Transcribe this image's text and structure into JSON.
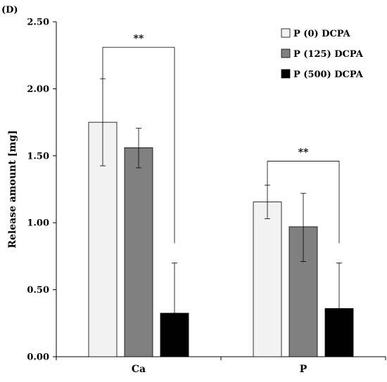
{
  "panel_label": "(D)",
  "chart_data": {
    "type": "bar",
    "categories": [
      "Ca",
      "P"
    ],
    "ylabel": "Release amount [mg]",
    "xlabel": "",
    "ylim": [
      0,
      2.5
    ],
    "yticks": [
      0.0,
      0.5,
      1.0,
      1.5,
      2.0,
      2.5
    ],
    "ytick_labels": [
      "0.00",
      "0.50",
      "1.00",
      "1.50",
      "2.00",
      "2.50"
    ],
    "grid": false,
    "legend_position": "top-right",
    "series": [
      {
        "name": "P (0) DCPA",
        "color": "#f2f2f2",
        "values": [
          1.75,
          1.155
        ],
        "err_upper": [
          2.075,
          1.28
        ],
        "err_lower": [
          1.425,
          1.03
        ]
      },
      {
        "name": "P (125) DCPA",
        "color": "#808080",
        "values": [
          1.56,
          0.97
        ],
        "err_upper": [
          1.705,
          1.22
        ],
        "err_lower": [
          1.41,
          0.71
        ]
      },
      {
        "name": "P (500) DCPA",
        "color": "#000000",
        "values": [
          0.325,
          0.36
        ],
        "err_upper": [
          0.7,
          0.7
        ],
        "err_lower": [
          0.325,
          0.36
        ]
      }
    ],
    "annotations": [
      {
        "text": "**",
        "category": "Ca",
        "from_series": 0,
        "to_series": 2,
        "bracket_y": 2.31
      },
      {
        "text": "**",
        "category": "P",
        "from_series": 0,
        "to_series": 2,
        "bracket_y": 1.46
      }
    ]
  }
}
